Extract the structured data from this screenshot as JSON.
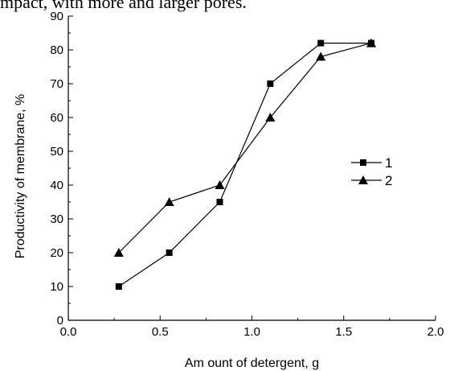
{
  "page": {
    "top_text": "mpact, with more and larger pores."
  },
  "chart_data": {
    "type": "line",
    "title": "",
    "xlabel": "Am ount of detergent, g",
    "ylabel": "Productivity of membrane, %",
    "xlim": [
      0.0,
      2.0
    ],
    "ylim": [
      0,
      90
    ],
    "x_ticks": [
      "0.0",
      "0.5",
      "1.0",
      "1.5",
      "2.0"
    ],
    "y_ticks": [
      "0",
      "10",
      "20",
      "30",
      "40",
      "50",
      "60",
      "70",
      "80",
      "90"
    ],
    "grid": false,
    "legend_position": "right",
    "series": [
      {
        "name": "1",
        "marker": "square",
        "x": [
          0.275,
          0.55,
          0.825,
          1.1,
          1.375,
          1.65
        ],
        "y": [
          10,
          20,
          35,
          70,
          82,
          82
        ]
      },
      {
        "name": "2",
        "marker": "triangle",
        "x": [
          0.275,
          0.55,
          0.825,
          1.1,
          1.375,
          1.65
        ],
        "y": [
          20,
          35,
          40,
          60,
          78,
          82
        ]
      }
    ]
  }
}
